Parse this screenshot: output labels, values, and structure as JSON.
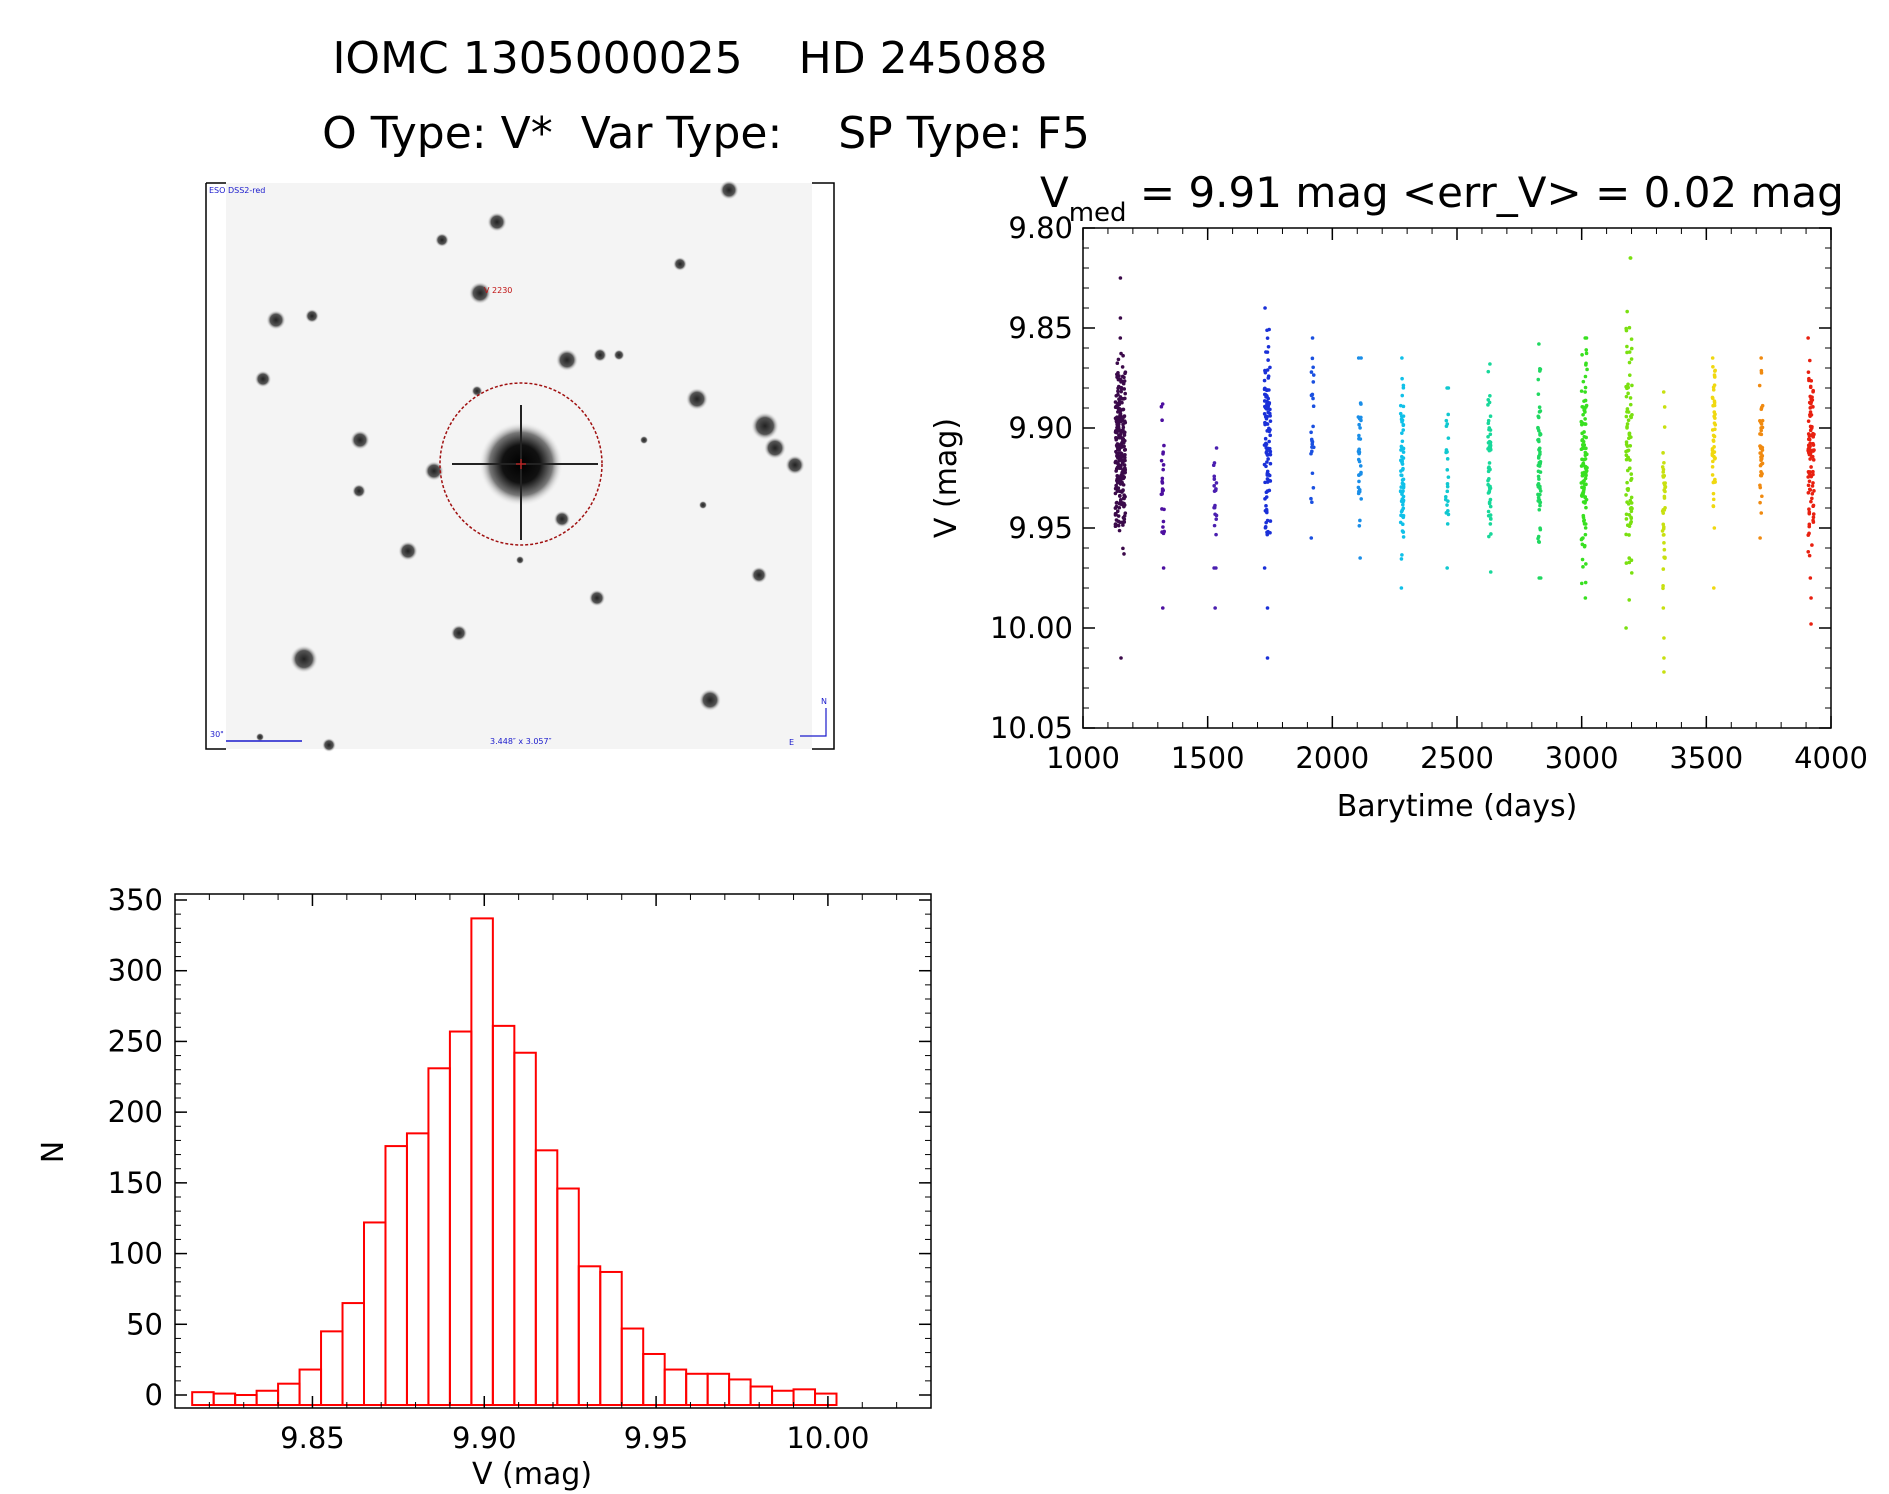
{
  "header": {
    "title_line1": "IOMC 1305000025    HD 245088",
    "title_line2": "O Type: V*  Var Type:    SP Type: F5"
  },
  "finder_image": {
    "survey_label": "ESO DSS2-red",
    "star_label": "V 2230",
    "scale_label": "30\"",
    "coord_label": "3.448″ x 3.057″",
    "north_label": "N",
    "east_label": "E",
    "colors": {
      "frame": "#000000",
      "annotation_blue": "#1a1acc",
      "circle_red": "#a01010"
    }
  },
  "chart_data": [
    {
      "type": "scatter",
      "title_prefix": "V",
      "title_subscript": "med",
      "title_rest": " = 9.91 mag <err_V> = 0.02 mag",
      "xlabel": "Barytime (days)",
      "ylabel": "V (mag)",
      "xlim": [
        1000,
        4000
      ],
      "ylim": [
        9.8,
        10.05
      ],
      "y_inverted": true,
      "grid": false,
      "x_ticks": [
        "1000",
        "1500",
        "2000",
        "2500",
        "3000",
        "3500",
        "4000"
      ],
      "y_ticks": [
        "9.80",
        "9.85",
        "9.90",
        "9.95",
        "10.00",
        "10.05"
      ],
      "series": [
        {
          "x": 1150,
          "y_min": 9.855,
          "y_max": 10.015,
          "y_core_min": 9.86,
          "y_core_max": 9.965,
          "n": 260,
          "outliers": [
            9.825,
            9.845
          ],
          "color": "#3b0a4a"
        },
        {
          "x": 1320,
          "y_min": 9.888,
          "y_max": 9.97,
          "n": 25,
          "outliers": [
            9.99
          ],
          "color": "#4d10a0"
        },
        {
          "x": 1530,
          "y_min": 9.91,
          "y_max": 9.97,
          "n": 20,
          "outliers": [
            9.99
          ],
          "color": "#4a1fb0"
        },
        {
          "x": 1740,
          "y_min": 9.84,
          "y_max": 9.97,
          "n": 110,
          "outliers": [
            9.99,
            10.015
          ],
          "color": "#1a30d8"
        },
        {
          "x": 1920,
          "y_min": 9.855,
          "y_max": 9.955,
          "n": 25,
          "color": "#1a50e0"
        },
        {
          "x": 2110,
          "y_min": 9.865,
          "y_max": 9.965,
          "n": 35,
          "color": "#1a8ee8"
        },
        {
          "x": 2280,
          "y_min": 9.865,
          "y_max": 9.98,
          "n": 70,
          "color": "#10c0e8"
        },
        {
          "x": 2460,
          "y_min": 9.88,
          "y_max": 9.97,
          "n": 25,
          "color": "#10c8d0"
        },
        {
          "x": 2630,
          "y_min": 9.868,
          "y_max": 9.972,
          "n": 55,
          "color": "#18d89a"
        },
        {
          "x": 2830,
          "y_min": 9.858,
          "y_max": 9.975,
          "n": 60,
          "color": "#20d860"
        },
        {
          "x": 3010,
          "y_min": 9.855,
          "y_max": 9.985,
          "n": 110,
          "color": "#38e020"
        },
        {
          "x": 3190,
          "y_min": 9.815,
          "y_max": 10.0,
          "n": 90,
          "color": "#7ae010"
        },
        {
          "x": 3330,
          "y_min": 9.882,
          "y_max": 9.99,
          "n": 40,
          "outliers": [
            10.005,
            10.015,
            10.022
          ],
          "color": "#c8e010"
        },
        {
          "x": 3530,
          "y_min": 9.865,
          "y_max": 9.95,
          "n": 50,
          "outliers": [
            9.98
          ],
          "color": "#f0d810"
        },
        {
          "x": 3720,
          "y_min": 9.865,
          "y_max": 9.955,
          "n": 45,
          "color": "#f08a10"
        },
        {
          "x": 3920,
          "y_min": 9.855,
          "y_max": 9.975,
          "n": 100,
          "outliers": [
            9.985,
            9.998
          ],
          "color": "#e82010"
        }
      ]
    },
    {
      "type": "bar",
      "subtype": "histogram",
      "xlabel": "V (mag)",
      "ylabel": "N",
      "xlim": [
        9.81,
        10.03
      ],
      "ylim": [
        0,
        350
      ],
      "grid": false,
      "bar_color": "#ff0000",
      "x_ticks": [
        "9.85",
        "9.90",
        "9.95",
        "10.00"
      ],
      "y_ticks": [
        "0",
        "50",
        "100",
        "150",
        "200",
        "250",
        "300",
        "350"
      ],
      "bin_width": 0.00625,
      "bin_start": 9.815,
      "values": [
        2,
        1,
        0,
        3,
        8,
        18,
        45,
        65,
        122,
        176,
        185,
        231,
        257,
        337,
        261,
        242,
        173,
        146,
        91,
        87,
        47,
        29,
        18,
        15,
        15,
        11,
        6,
        3,
        4,
        1
      ]
    }
  ]
}
